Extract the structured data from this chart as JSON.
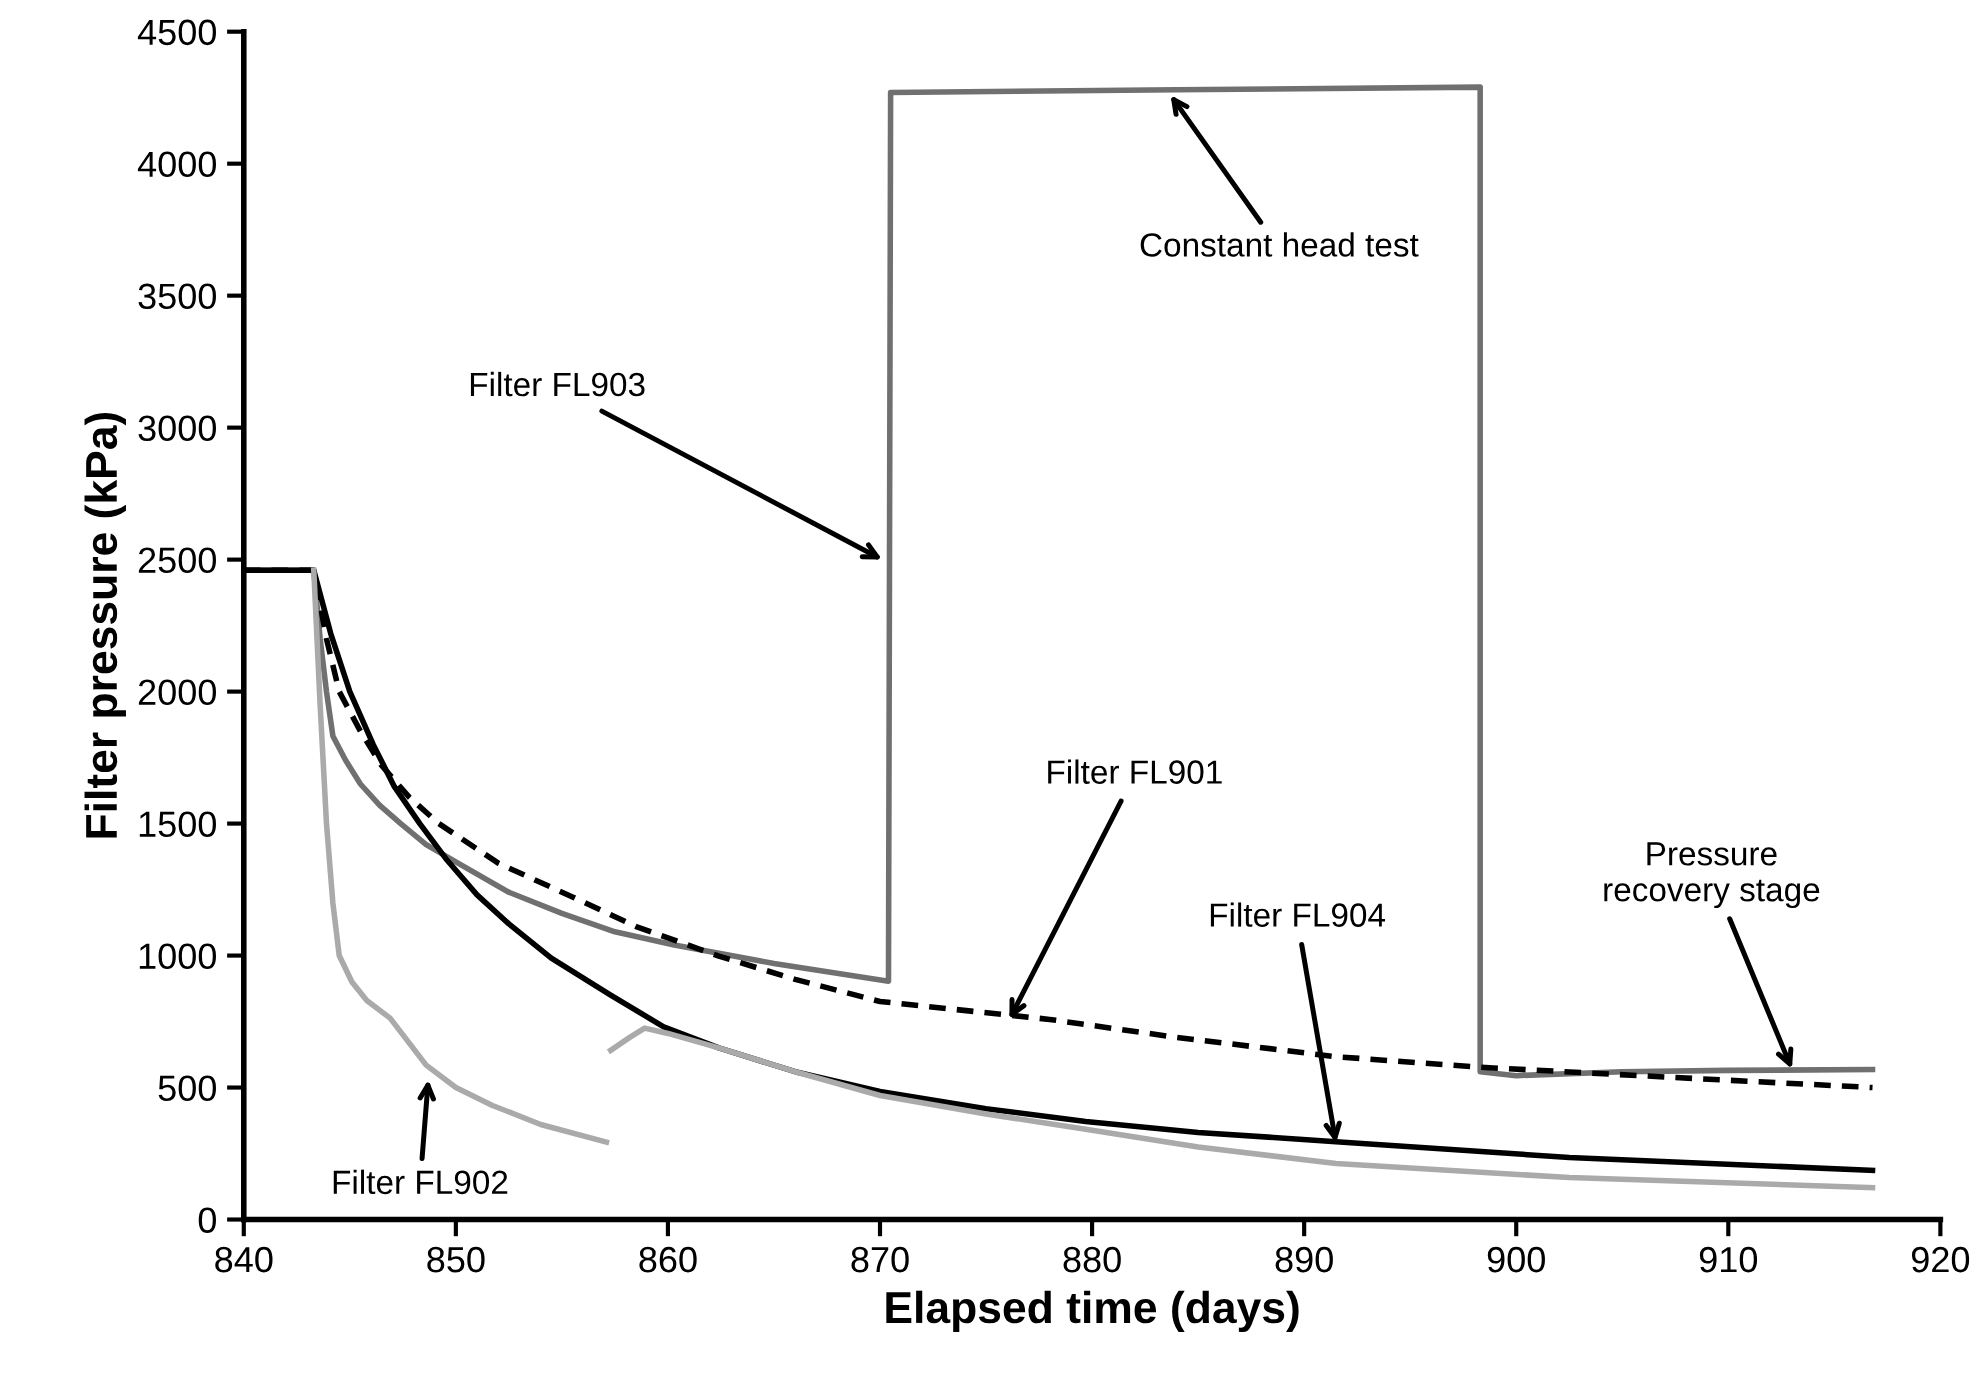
{
  "chart_data": {
    "type": "line",
    "xlabel": "Elapsed time (days)",
    "ylabel": "Filter pressure (kPa)",
    "xlim": [
      840,
      920
    ],
    "xticks": [
      840,
      850,
      860,
      870,
      880,
      890,
      900,
      910,
      920
    ],
    "ylim": [
      0,
      4500
    ],
    "yticks": [
      0,
      500,
      1000,
      1500,
      2000,
      2500,
      3000,
      3500,
      4000,
      4500
    ],
    "grid": false,
    "legend": false,
    "marker": "none",
    "series": [
      {
        "color": "#707070",
        "line_style": "solid",
        "x": [
          840,
          843.3,
          843.6,
          843.9,
          844.2,
          844.8,
          845.5,
          846.4,
          847.4,
          848.6,
          850.1,
          852.5,
          855,
          857.5,
          860.3,
          865,
          870.4,
          870.5,
          884,
          898.3,
          898.3,
          900,
          905,
          910,
          916.8
        ],
        "values": [
          2460,
          2460,
          2200,
          2000,
          1832,
          1740,
          1650,
          1570,
          1500,
          1420,
          1350,
          1240,
          1160,
          1090,
          1040,
          970,
          903,
          4270,
          4280,
          4290,
          560,
          545,
          560,
          565,
          568
        ]
      },
      {
        "color": "#000000",
        "line_style": "dashed",
        "x": [
          840,
          843.3,
          843.9,
          844.5,
          845.5,
          846.5,
          847.8,
          849.2,
          852,
          855.5,
          858.5,
          862.4,
          866,
          870,
          878,
          884,
          891.5,
          898.3,
          907,
          916.8
        ],
        "values": [
          2460,
          2460,
          2200,
          2000,
          1850,
          1720,
          1600,
          1500,
          1350,
          1222,
          1110,
          998,
          910,
          826,
          758,
          690,
          617,
          577,
          540,
          500
        ]
      },
      {
        "color": "#000000",
        "line_style": "solid",
        "x": [
          840,
          843.3,
          844.1,
          845,
          846.1,
          847.1,
          848.3,
          849.6,
          851,
          852.5,
          854.5,
          857.3,
          859.8,
          862.4,
          866,
          870,
          875,
          879.7,
          885,
          891.5,
          902.5,
          916.8
        ],
        "values": [
          2460,
          2460,
          2220,
          2000,
          1800,
          1640,
          1500,
          1360,
          1230,
          1120,
          990,
          850,
          730,
          650,
          560,
          485,
          420,
          371,
          330,
          295,
          235,
          186
        ]
      },
      {
        "color": "#aaaaaa",
        "line_style": "solid",
        "x": [
          843.3,
          843.6,
          843.9,
          844.2,
          844.5,
          845.1,
          845.8,
          846.9,
          848.6,
          850,
          851.7,
          854,
          857.1,
          857.2,
          857.3,
          858.2,
          858.9,
          860,
          862.4,
          866,
          870,
          875,
          879.7,
          885,
          891.5,
          902.5,
          916.8
        ],
        "values": [
          2460,
          1950,
          1500,
          1200,
          1000,
          900,
          830,
          763,
          585,
          500,
          433,
          360,
          293,
          null,
          641,
          690,
          725,
          705,
          650,
          560,
          470,
          400,
          342,
          275,
          212,
          159,
          121
        ]
      }
    ],
    "annotations": [
      {
        "text": "Filter FL903",
        "x": 870.1,
        "y": 2500
      },
      {
        "text": "Constant head test",
        "x": 883.7,
        "y": 4260
      },
      {
        "text": "Filter FL901",
        "x": 876.1,
        "y": 758
      },
      {
        "text": "Filter FL904",
        "x": 891.5,
        "y": 290
      },
      {
        "text": "Pressure\nrecovery stage",
        "x": 913,
        "y": 570
      },
      {
        "text": "Filter FL902",
        "x": 848.7,
        "y": 530
      }
    ]
  }
}
